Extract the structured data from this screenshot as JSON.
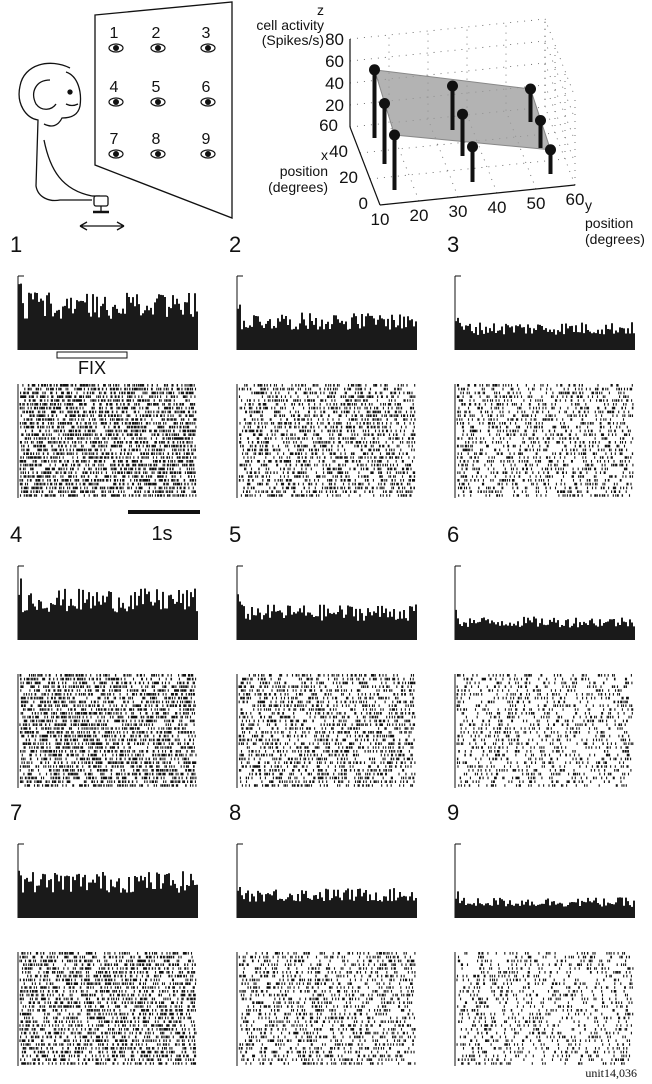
{
  "plot3d": {
    "z_label": "z",
    "z_title": "cell activity",
    "z_units": "(Spikes/s)",
    "x_label": "x",
    "x_title": "position",
    "x_units": "(degrees)",
    "y_label": "y",
    "y_title": "position",
    "y_units": "(degrees)",
    "zlim": [
      0,
      80
    ],
    "zticks": [
      20,
      40,
      60,
      80
    ],
    "xlim": [
      0,
      60
    ],
    "xticks": [
      0,
      20,
      40,
      60
    ],
    "ylim": [
      10,
      60
    ],
    "yticks": [
      10,
      20,
      30,
      40,
      50,
      60
    ],
    "points": [
      {
        "x": 50,
        "y": 15,
        "z": 62
      },
      {
        "x": 50,
        "y": 35,
        "z": 40
      },
      {
        "x": 50,
        "y": 55,
        "z": 30
      },
      {
        "x": 30,
        "y": 15,
        "z": 55
      },
      {
        "x": 30,
        "y": 35,
        "z": 38
      },
      {
        "x": 30,
        "y": 55,
        "z": 25
      },
      {
        "x": 10,
        "y": 15,
        "z": 50
      },
      {
        "x": 10,
        "y": 35,
        "z": 32
      },
      {
        "x": 10,
        "y": 55,
        "z": 22
      }
    ]
  },
  "targets": [
    "1",
    "2",
    "3",
    "4",
    "5",
    "6",
    "7",
    "8",
    "9"
  ],
  "panels": [
    "1",
    "2",
    "3",
    "4",
    "5",
    "6",
    "7",
    "8",
    "9"
  ],
  "fix_label": "FIX",
  "scale_label": "1s",
  "unit": "unit14,036"
}
